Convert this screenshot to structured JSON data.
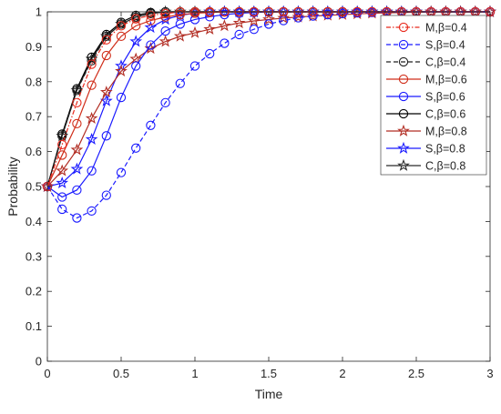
{
  "chart_data": {
    "type": "line",
    "title": "",
    "xlabel": "Time",
    "ylabel": "Probability",
    "xlim": [
      0,
      3
    ],
    "ylim": [
      0,
      1
    ],
    "grid": false,
    "legend_placement": "top-right",
    "xticks": [
      0,
      0.5,
      1,
      1.5,
      2,
      2.5,
      3
    ],
    "xtick_labels": [
      "0",
      "0.5",
      "1",
      "1.5",
      "2",
      "2.5",
      "3"
    ],
    "yticks": [
      0,
      0.1,
      0.2,
      0.3,
      0.4,
      0.5,
      0.6,
      0.7,
      0.8,
      0.9,
      1
    ],
    "ytick_labels": [
      "0",
      "0.1",
      "0.2",
      "0.3",
      "0.4",
      "0.5",
      "0.6",
      "0.7",
      "0.8",
      "0.9",
      "1"
    ],
    "x": [
      0,
      0.1,
      0.2,
      0.3,
      0.4,
      0.5,
      0.6,
      0.7,
      0.8,
      0.9,
      1.0,
      1.1,
      1.2,
      1.3,
      1.4,
      1.5,
      1.6,
      1.7,
      1.8,
      1.9,
      2.0,
      2.1,
      2.2,
      2.3,
      2.4,
      2.5,
      2.6,
      2.7,
      2.8,
      2.9,
      3.0
    ],
    "series": [
      {
        "name": "M,β=0.4",
        "color": "#e8291c",
        "dash": "dashdot",
        "marker": "circle",
        "values": [
          0.5,
          0.62,
          0.74,
          0.85,
          0.92,
          0.96,
          0.98,
          0.99,
          0.995,
          1,
          1,
          1,
          1,
          1,
          1,
          1,
          1,
          1,
          1,
          1,
          1,
          1,
          1,
          1,
          1,
          1,
          1,
          1,
          1,
          1,
          1
        ]
      },
      {
        "name": "S,β=0.4",
        "color": "#1a1aff",
        "dash": "dashed",
        "marker": "circle",
        "values": [
          0.5,
          0.435,
          0.41,
          0.43,
          0.475,
          0.54,
          0.61,
          0.675,
          0.74,
          0.795,
          0.845,
          0.88,
          0.91,
          0.935,
          0.95,
          0.965,
          0.975,
          0.983,
          0.988,
          0.992,
          0.995,
          0.997,
          0.998,
          0.999,
          1,
          1,
          1,
          1,
          1,
          1,
          1
        ]
      },
      {
        "name": "C,β=0.4",
        "color": "#222222",
        "dash": "dashed",
        "marker": "circle",
        "values": [
          0.5,
          0.645,
          0.775,
          0.86,
          0.93,
          0.965,
          0.985,
          0.995,
          1,
          1,
          1,
          1,
          1,
          1,
          1,
          1,
          1,
          1,
          1,
          1,
          1,
          1,
          1,
          1,
          1,
          1,
          1,
          1,
          1,
          1,
          1
        ]
      },
      {
        "name": "M,β=0.6",
        "color": "#d02e1a",
        "dash": "solid",
        "marker": "circle",
        "values": [
          0.5,
          0.59,
          0.68,
          0.79,
          0.875,
          0.93,
          0.96,
          0.975,
          0.985,
          0.992,
          0.996,
          0.998,
          1,
          1,
          1,
          1,
          1,
          1,
          1,
          1,
          1,
          1,
          1,
          1,
          1,
          1,
          1,
          1,
          1,
          1,
          1
        ]
      },
      {
        "name": "S,β=0.6",
        "color": "#1a1aff",
        "dash": "solid",
        "marker": "circle",
        "values": [
          0.5,
          0.47,
          0.49,
          0.545,
          0.645,
          0.755,
          0.845,
          0.905,
          0.945,
          0.965,
          0.978,
          0.986,
          0.992,
          0.996,
          0.998,
          1,
          1,
          1,
          1,
          1,
          1,
          1,
          1,
          1,
          1,
          1,
          1,
          1,
          1,
          1,
          1
        ]
      },
      {
        "name": "C,β=0.6",
        "color": "#000000",
        "dash": "solid",
        "marker": "circle",
        "values": [
          0.5,
          0.65,
          0.78,
          0.87,
          0.935,
          0.97,
          0.99,
          0.998,
          1,
          1,
          1,
          1,
          1,
          1,
          1,
          1,
          1,
          1,
          1,
          1,
          1,
          1,
          1,
          1,
          1,
          1,
          1,
          1,
          1,
          1,
          1
        ]
      },
      {
        "name": "M,β=0.8",
        "color": "#b22e24",
        "dash": "solid",
        "marker": "star",
        "values": [
          0.5,
          0.545,
          0.605,
          0.695,
          0.77,
          0.83,
          0.865,
          0.895,
          0.915,
          0.93,
          0.94,
          0.95,
          0.96,
          0.968,
          0.974,
          0.978,
          0.982,
          0.985,
          0.988,
          0.99,
          0.992,
          0.994,
          0.996,
          0.997,
          0.998,
          0.999,
          1,
          1,
          1,
          1,
          1
        ]
      },
      {
        "name": "S,β=0.8",
        "color": "#1a1aff",
        "dash": "solid",
        "marker": "star",
        "values": [
          0.5,
          0.51,
          0.55,
          0.635,
          0.745,
          0.845,
          0.915,
          0.955,
          0.978,
          0.99,
          0.996,
          1,
          1,
          1,
          1,
          1,
          1,
          1,
          1,
          1,
          1,
          1,
          1,
          1,
          1,
          1,
          1,
          1,
          1,
          1,
          1
        ]
      },
      {
        "name": "C,β=0.8",
        "color": "#2b2b2b",
        "dash": "solid",
        "marker": "star",
        "values": [
          0.5,
          0.645,
          0.775,
          0.865,
          0.93,
          0.965,
          0.985,
          0.995,
          1,
          1,
          1,
          1,
          1,
          1,
          1,
          1,
          1,
          1,
          1,
          1,
          1,
          1,
          1,
          1,
          1,
          1,
          1,
          1,
          1,
          1,
          1
        ]
      }
    ]
  }
}
